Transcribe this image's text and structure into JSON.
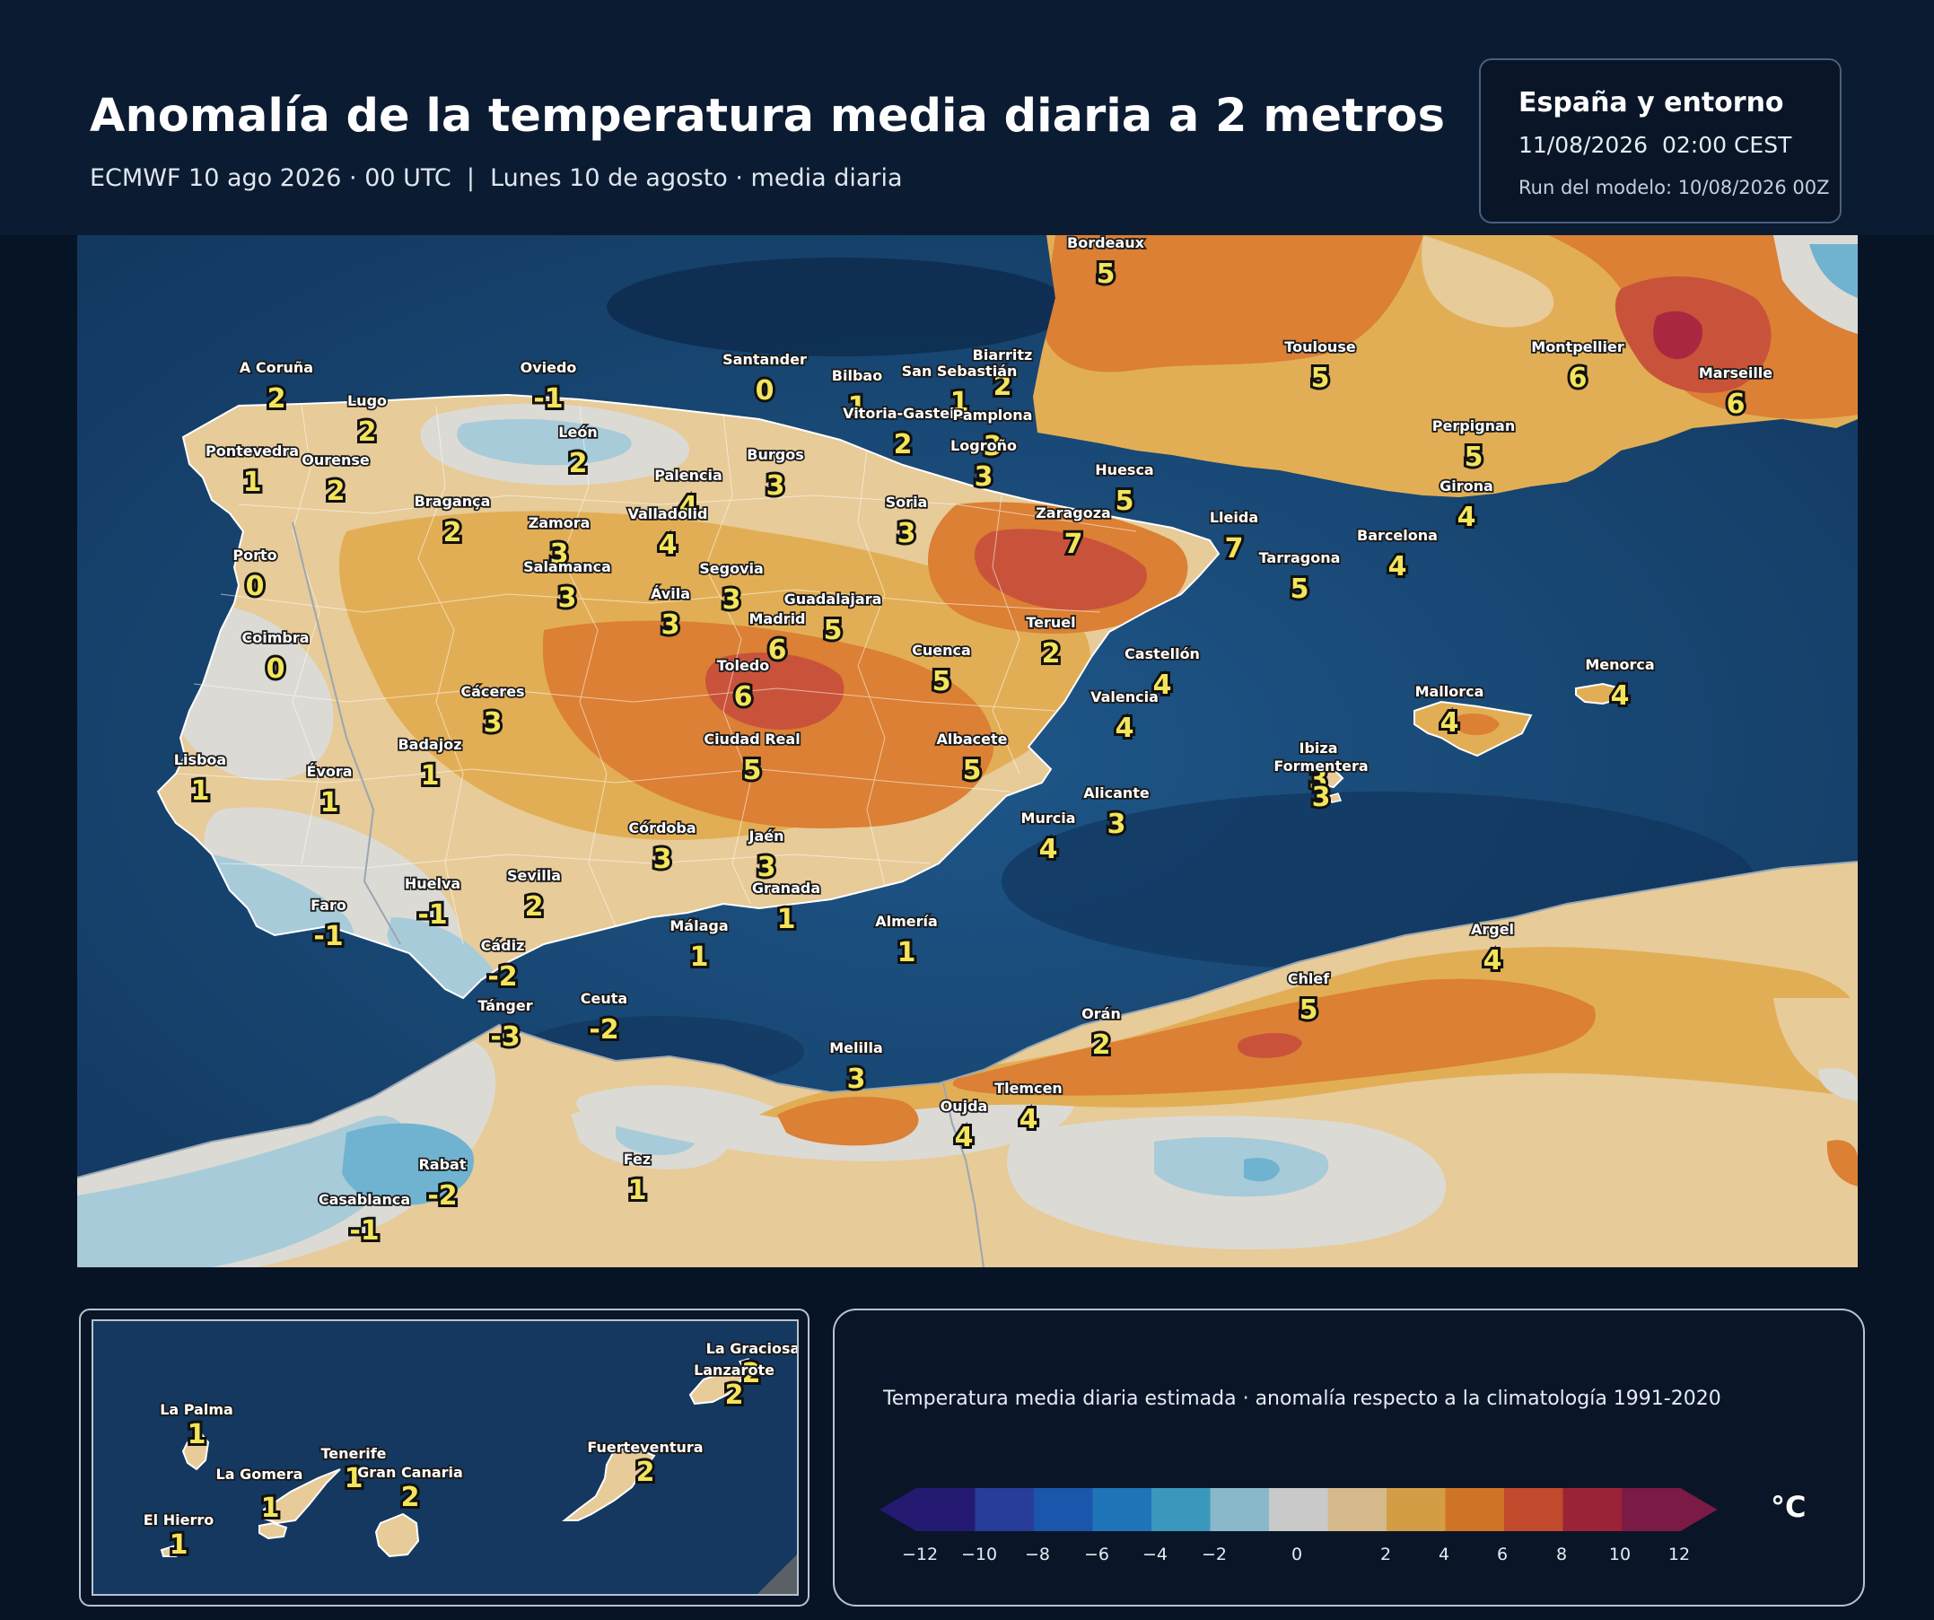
{
  "header": {
    "title": "Anomalía de la temperatura media diaria a 2 metros",
    "subtitle": "ECMWF 10 ago 2026 · 00 UTC  |  Lunes 10 de agosto · media diaria"
  },
  "info_box": {
    "region": "España y entorno",
    "datetime": "11/08/2026  02:00 CEST",
    "run": "Run del modelo: 10/08/2026 00Z"
  },
  "legend": {
    "description": "Temperatura media diaria estimada · anomalía respecto a la climatología 1991-2020",
    "unit": "°C",
    "ticks": [
      "−12",
      "−10",
      "−8",
      "−6",
      "−4",
      "−2",
      "0",
      "2",
      "4",
      "6",
      "8",
      "10",
      "12"
    ],
    "colors": [
      "#241a72",
      "#283c9a",
      "#1b56ad",
      "#1f74b8",
      "#3a98bd",
      "#88b8c9",
      "#c9c9c9",
      "#d6b98a",
      "#d49c45",
      "#cf7426",
      "#c24a2d",
      "#9b2338",
      "#7a1a45"
    ]
  },
  "map_colors": {
    "sea": "#1a4a7a",
    "land_neutral": "#dcdad4",
    "cool_light": "#a7cbd9",
    "cool": "#6fb3d1",
    "warm_light": "#e7cb98",
    "warm": "#e2ae55",
    "hot": "#db8034",
    "very_hot": "#c9533a",
    "extreme": "#a9283f",
    "label_yellow": "#f4e45a"
  },
  "cities": [
    {
      "name": "Bordeaux",
      "anomaly": "5"
    },
    {
      "name": "Toulouse",
      "anomaly": "5"
    },
    {
      "name": "Montpellier",
      "anomaly": "6"
    },
    {
      "name": "Marseille",
      "anomaly": "6"
    },
    {
      "name": "Perpignan",
      "anomaly": "5"
    },
    {
      "name": "Girona",
      "anomaly": "4"
    },
    {
      "name": "Barcelona",
      "anomaly": "4"
    },
    {
      "name": "Lleida",
      "anomaly": "7"
    },
    {
      "name": "Tarragona",
      "anomaly": "5"
    },
    {
      "name": "Huesca",
      "anomaly": "5"
    },
    {
      "name": "Zaragoza",
      "anomaly": "7"
    },
    {
      "name": "Biarritz",
      "anomaly": "2"
    },
    {
      "name": "San Sebastián",
      "anomaly": "1"
    },
    {
      "name": "Bilbao",
      "anomaly": "1"
    },
    {
      "name": "Vitoria-Gasteiz",
      "anomaly": "2"
    },
    {
      "name": "Pamplona",
      "anomaly": "3"
    },
    {
      "name": "Logroño",
      "anomaly": "3"
    },
    {
      "name": "Santander",
      "anomaly": "0"
    },
    {
      "name": "Oviedo",
      "anomaly": "-1"
    },
    {
      "name": "A Coruña",
      "anomaly": "2"
    },
    {
      "name": "Lugo",
      "anomaly": "2"
    },
    {
      "name": "Pontevedra",
      "anomaly": "1"
    },
    {
      "name": "Ourense",
      "anomaly": "2"
    },
    {
      "name": "León",
      "anomaly": "2"
    },
    {
      "name": "Burgos",
      "anomaly": "3"
    },
    {
      "name": "Palencia",
      "anomaly": "4"
    },
    {
      "name": "Valladolid",
      "anomaly": "4"
    },
    {
      "name": "Soria",
      "anomaly": "3"
    },
    {
      "name": "Bragança",
      "anomaly": "2"
    },
    {
      "name": "Zamora",
      "anomaly": "3"
    },
    {
      "name": "Salamanca",
      "anomaly": "3"
    },
    {
      "name": "Segovia",
      "anomaly": "3"
    },
    {
      "name": "Ávila",
      "anomaly": "3"
    },
    {
      "name": "Guadalajara",
      "anomaly": "5"
    },
    {
      "name": "Madrid",
      "anomaly": "6"
    },
    {
      "name": "Porto",
      "anomaly": "0"
    },
    {
      "name": "Coimbra",
      "anomaly": "0"
    },
    {
      "name": "Toledo",
      "anomaly": "6"
    },
    {
      "name": "Cuenca",
      "anomaly": "5"
    },
    {
      "name": "Teruel",
      "anomaly": "2"
    },
    {
      "name": "Castellón",
      "anomaly": "4"
    },
    {
      "name": "Valencia",
      "anomaly": "4"
    },
    {
      "name": "Cáceres",
      "anomaly": "3"
    },
    {
      "name": "Badajoz",
      "anomaly": "1"
    },
    {
      "name": "Lisboa",
      "anomaly": "1"
    },
    {
      "name": "Évora",
      "anomaly": "1"
    },
    {
      "name": "Ciudad Real",
      "anomaly": "5"
    },
    {
      "name": "Albacete",
      "anomaly": "5"
    },
    {
      "name": "Alicante",
      "anomaly": "3"
    },
    {
      "name": "Murcia",
      "anomaly": "4"
    },
    {
      "name": "Córdoba",
      "anomaly": "3"
    },
    {
      "name": "Jaén",
      "anomaly": "3"
    },
    {
      "name": "Granada",
      "anomaly": "1"
    },
    {
      "name": "Almería",
      "anomaly": "1"
    },
    {
      "name": "Málaga",
      "anomaly": "1"
    },
    {
      "name": "Sevilla",
      "anomaly": "2"
    },
    {
      "name": "Huelva",
      "anomaly": "-1"
    },
    {
      "name": "Faro",
      "anomaly": "-1"
    },
    {
      "name": "Cádiz",
      "anomaly": "-2"
    },
    {
      "name": "Tánger",
      "anomaly": "-3"
    },
    {
      "name": "Ceuta",
      "anomaly": "-2"
    },
    {
      "name": "Melilla",
      "anomaly": "3"
    },
    {
      "name": "Orán",
      "anomaly": "2"
    },
    {
      "name": "Chlef",
      "anomaly": "5"
    },
    {
      "name": "Argel",
      "anomaly": "4"
    },
    {
      "name": "Oujda",
      "anomaly": "4"
    },
    {
      "name": "Tlemcen",
      "anomaly": "4"
    },
    {
      "name": "Fez",
      "anomaly": "1"
    },
    {
      "name": "Rabat",
      "anomaly": "-2"
    },
    {
      "name": "Casablanca",
      "anomaly": "-1"
    },
    {
      "name": "Mallorca",
      "anomaly": "4"
    },
    {
      "name": "Menorca",
      "anomaly": "4"
    },
    {
      "name": "Ibiza",
      "anomaly": "3"
    },
    {
      "name": "Formentera",
      "anomaly": "3"
    }
  ],
  "canary_islands": [
    {
      "name": "La Graciosa",
      "anomaly": "2"
    },
    {
      "name": "Lanzarote",
      "anomaly": "2"
    },
    {
      "name": "La Palma",
      "anomaly": "1"
    },
    {
      "name": "Tenerife",
      "anomaly": "1"
    },
    {
      "name": "La Gomera",
      "anomaly": "1"
    },
    {
      "name": "Gran Canaria",
      "anomaly": "2"
    },
    {
      "name": "Fuerteventura",
      "anomaly": "2"
    },
    {
      "name": "El Hierro",
      "anomaly": "1"
    }
  ]
}
